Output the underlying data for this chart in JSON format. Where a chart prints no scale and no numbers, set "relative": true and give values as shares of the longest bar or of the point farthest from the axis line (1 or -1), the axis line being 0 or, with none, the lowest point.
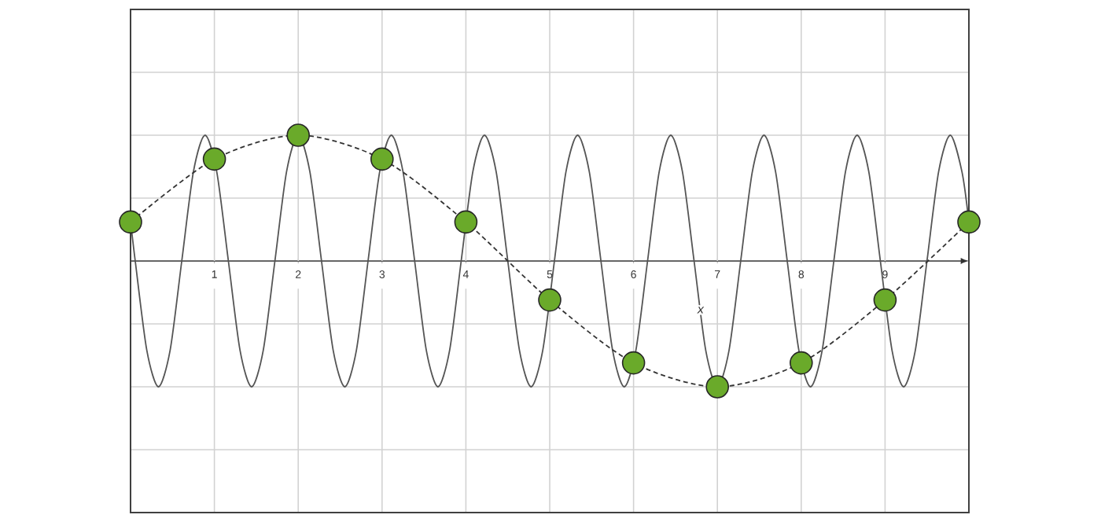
{
  "chart_data": {
    "type": "line",
    "xlabel": "x",
    "relative": true,
    "xlim": [
      0,
      10
    ],
    "xticks": [
      1,
      2,
      3,
      4,
      5,
      6,
      7,
      8,
      9
    ],
    "tick_labels": "x",
    "grid": true,
    "series": [
      {
        "type": "line",
        "color": "#555555",
        "line_style": "solid",
        "marker": "none",
        "x": [
          0,
          0.056,
          0.194,
          0.333,
          0.472,
          0.611,
          0.75,
          0.889,
          1.028,
          1.167,
          1.306,
          1.444,
          1.583,
          1.722,
          1.861,
          2.0,
          2.139,
          2.278,
          2.417,
          2.556,
          2.694,
          2.833,
          2.972,
          3.111,
          3.25,
          3.389,
          3.528,
          3.667,
          3.806,
          3.944,
          4.083,
          4.222,
          4.361,
          4.5,
          4.639,
          4.778,
          4.917,
          5.056,
          5.194,
          5.333,
          5.472,
          5.611,
          5.75,
          5.889,
          6.028,
          6.167,
          6.306,
          6.444,
          6.583,
          6.722,
          6.861,
          7.0,
          7.139,
          7.278,
          7.417,
          7.556,
          7.694,
          7.833,
          7.972,
          8.111,
          8.25,
          8.389,
          8.528,
          8.667,
          8.806,
          8.944,
          9.083,
          9.222,
          9.361,
          9.5,
          9.639,
          9.778,
          9.917,
          10
        ],
        "values": [
          0.31,
          0,
          -0.71,
          -1,
          -0.71,
          0,
          0.71,
          1,
          0.71,
          0,
          -0.71,
          -1,
          -0.71,
          0,
          0.71,
          1,
          0.71,
          0,
          -0.71,
          -1,
          -0.71,
          0,
          0.71,
          1,
          0.71,
          0,
          -0.71,
          -1,
          -0.71,
          0,
          0.71,
          1,
          0.71,
          0,
          -0.71,
          -1,
          -0.71,
          0,
          0.71,
          1,
          0.71,
          0,
          -0.71,
          -1,
          -0.71,
          0,
          0.71,
          1,
          0.71,
          0,
          -0.71,
          -1,
          -0.71,
          0,
          0.71,
          1,
          0.71,
          0,
          -0.71,
          -1,
          -0.71,
          0,
          0.71,
          1,
          0.71,
          0,
          -0.71,
          -1,
          -0.71,
          0,
          0.71,
          1,
          0.71,
          0.31
        ]
      },
      {
        "type": "line",
        "color": "#333333",
        "line_style": "dashed",
        "marker": "none",
        "x": [
          0,
          1,
          2,
          3,
          4,
          5,
          6,
          7,
          8,
          9,
          10
        ],
        "values": [
          0.31,
          0.81,
          1,
          0.81,
          0.31,
          -0.31,
          -0.81,
          -1,
          -0.81,
          -0.31,
          0.31
        ]
      },
      {
        "type": "scatter",
        "color": "#6aaa2a",
        "marker": "circle",
        "x": [
          0,
          1,
          2,
          3,
          4,
          5,
          6,
          7,
          8,
          9,
          10
        ],
        "values": [
          0.31,
          0.81,
          1,
          0.81,
          0.31,
          -0.31,
          -0.81,
          -1,
          -0.81,
          -0.31,
          0.31
        ]
      }
    ]
  }
}
